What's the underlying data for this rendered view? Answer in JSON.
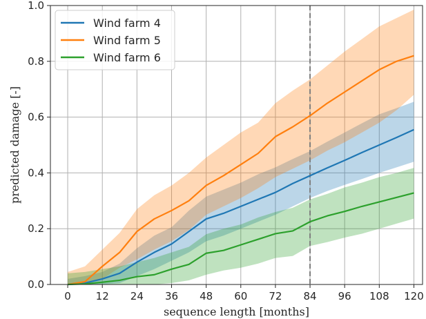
{
  "chart_data": {
    "type": "line",
    "xlabel": "sequence length [months]",
    "ylabel": "predicted damage [-]",
    "xlim": [
      -6,
      123
    ],
    "ylim": [
      0,
      1.0
    ],
    "xticks": [
      0,
      12,
      24,
      36,
      48,
      60,
      72,
      84,
      96,
      108,
      120
    ],
    "yticks": [
      0.0,
      0.2,
      0.4,
      0.6,
      0.8,
      1.0
    ],
    "grid": true,
    "legend_position": "top-left",
    "vline": {
      "x": 84,
      "style": "dashed",
      "color": "#7f7f7f"
    },
    "x": [
      0,
      6,
      12,
      18,
      24,
      30,
      36,
      42,
      48,
      54,
      60,
      66,
      72,
      78,
      84,
      90,
      96,
      102,
      108,
      114,
      120
    ],
    "series": [
      {
        "name": "Wind farm 4",
        "color": "#1f77b4",
        "values": [
          0.0,
          0.005,
          0.02,
          0.04,
          0.08,
          0.115,
          0.145,
          0.19,
          0.235,
          0.255,
          0.28,
          0.305,
          0.33,
          0.362,
          0.39,
          0.418,
          0.445,
          0.473,
          0.5,
          0.527,
          0.555
        ],
        "lower": [
          0.0,
          0.0,
          0.0,
          0.005,
          0.03,
          0.055,
          0.085,
          0.115,
          0.155,
          0.175,
          0.2,
          0.225,
          0.25,
          0.28,
          0.31,
          0.335,
          0.357,
          0.378,
          0.4,
          0.42,
          0.44
        ],
        "upper": [
          0.02,
          0.03,
          0.045,
          0.075,
          0.13,
          0.175,
          0.205,
          0.265,
          0.315,
          0.34,
          0.365,
          0.395,
          0.42,
          0.45,
          0.478,
          0.512,
          0.545,
          0.578,
          0.61,
          0.632,
          0.655
        ]
      },
      {
        "name": "Wind farm 5",
        "color": "#ff7f0e",
        "values": [
          0.0,
          0.01,
          0.065,
          0.115,
          0.19,
          0.235,
          0.265,
          0.3,
          0.355,
          0.39,
          0.43,
          0.47,
          0.53,
          0.565,
          0.605,
          0.65,
          0.69,
          0.73,
          0.77,
          0.8,
          0.82
        ],
        "lower": [
          0.0,
          0.0,
          0.02,
          0.06,
          0.09,
          0.125,
          0.155,
          0.195,
          0.25,
          0.28,
          0.31,
          0.345,
          0.385,
          0.415,
          0.445,
          0.48,
          0.51,
          0.545,
          0.58,
          0.625,
          0.68
        ],
        "upper": [
          0.045,
          0.065,
          0.125,
          0.185,
          0.27,
          0.32,
          0.355,
          0.4,
          0.455,
          0.5,
          0.545,
          0.58,
          0.65,
          0.695,
          0.735,
          0.785,
          0.835,
          0.88,
          0.925,
          0.955,
          0.985
        ]
      },
      {
        "name": "Wind farm 6",
        "color": "#2ca02c",
        "values": [
          0.0,
          0.002,
          0.008,
          0.015,
          0.028,
          0.035,
          0.055,
          0.072,
          0.112,
          0.122,
          0.142,
          0.162,
          0.182,
          0.192,
          0.225,
          0.246,
          0.262,
          0.28,
          0.296,
          0.312,
          0.328
        ],
        "lower": [
          0.0,
          0.0,
          0.0,
          0.0,
          0.0,
          0.0,
          0.005,
          0.015,
          0.035,
          0.05,
          0.06,
          0.075,
          0.095,
          0.102,
          0.138,
          0.152,
          0.168,
          0.182,
          0.2,
          0.218,
          0.236
        ],
        "upper": [
          0.04,
          0.045,
          0.055,
          0.065,
          0.08,
          0.095,
          0.115,
          0.135,
          0.18,
          0.2,
          0.215,
          0.24,
          0.26,
          0.275,
          0.305,
          0.325,
          0.348,
          0.365,
          0.385,
          0.4,
          0.418
        ]
      }
    ]
  }
}
